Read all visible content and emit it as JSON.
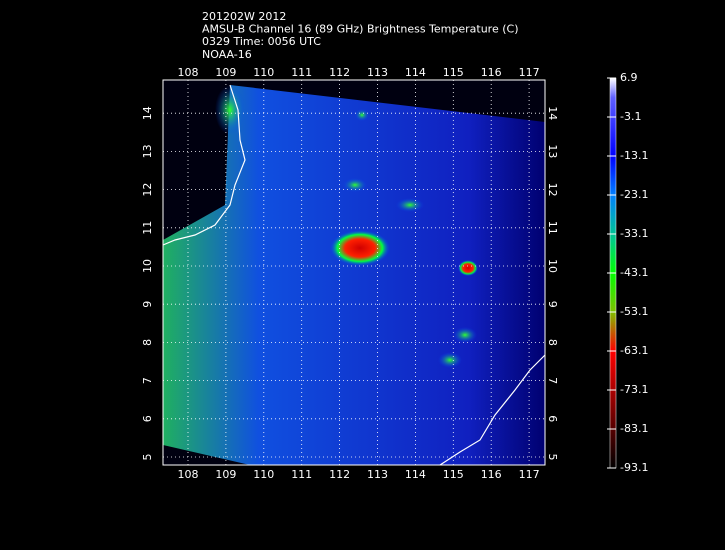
{
  "header": {
    "lines": [
      "201202W 2012",
      "AMSU-B Channel 16 (89 GHz) Brightness Temperature (C)",
      "0329 Time: 0056 UTC",
      "NOAA-16"
    ]
  },
  "map": {
    "lon_ticks": [
      108,
      109,
      110,
      111,
      112,
      113,
      114,
      115,
      116,
      117
    ],
    "lat_ticks": [
      5,
      6,
      7,
      8,
      9,
      10,
      11,
      12,
      13,
      14
    ]
  },
  "colorbar": {
    "labels": [
      6.9,
      -3.1,
      -13.1,
      -23.1,
      -33.1,
      -43.1,
      -53.1,
      -63.1,
      -73.1,
      -83.1,
      -93.1
    ]
  }
}
